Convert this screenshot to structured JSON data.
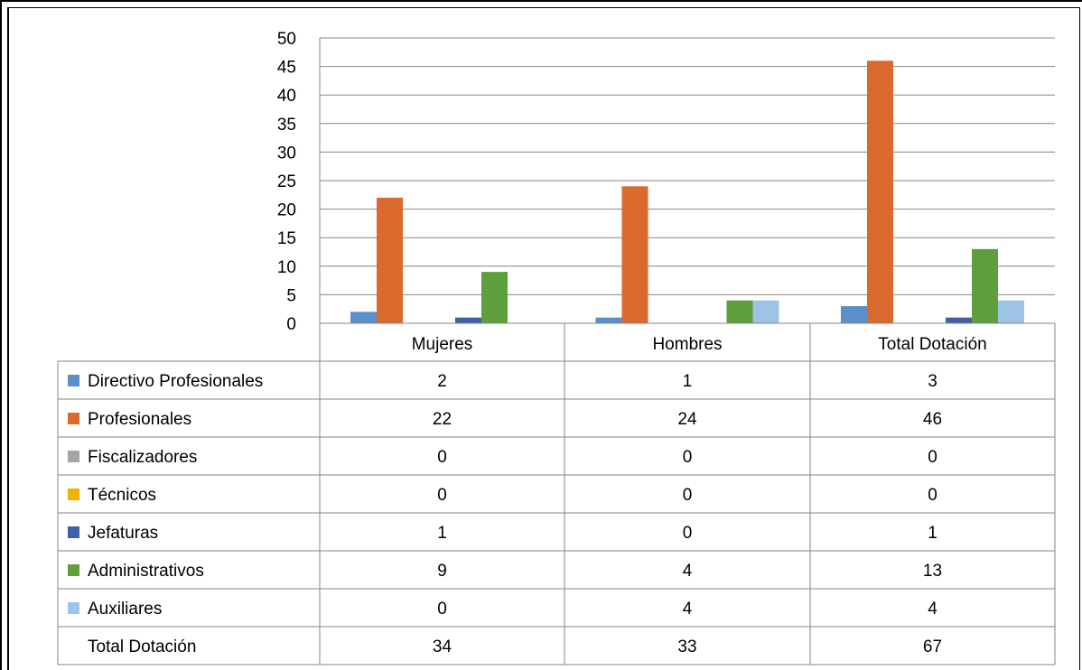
{
  "chart_data": {
    "type": "bar",
    "categories": [
      "Mujeres",
      "Hombres",
      "Total Dotación"
    ],
    "series": [
      {
        "name": "Directivo Profesionales",
        "values": [
          2,
          1,
          3
        ],
        "color": "#5B8FC9"
      },
      {
        "name": "Profesionales",
        "values": [
          22,
          24,
          46
        ],
        "color": "#D9692C"
      },
      {
        "name": "Fiscalizadores",
        "values": [
          0,
          0,
          0
        ],
        "color": "#A5A5A5"
      },
      {
        "name": "Técnicos",
        "values": [
          0,
          0,
          0
        ],
        "color": "#F0B400"
      },
      {
        "name": "Jefaturas",
        "values": [
          1,
          0,
          1
        ],
        "color": "#3F5FA8"
      },
      {
        "name": "Administrativos",
        "values": [
          9,
          4,
          13
        ],
        "color": "#5E9E3C"
      },
      {
        "name": "Auxiliares",
        "values": [
          0,
          4,
          4
        ],
        "color": "#9DC3E6"
      }
    ],
    "total_row": {
      "label": "Total Dotación",
      "values": [
        34,
        33,
        67
      ]
    },
    "yticks": [
      0,
      5,
      10,
      15,
      20,
      25,
      30,
      35,
      40,
      45,
      50
    ],
    "ylim": [
      0,
      50
    ],
    "grid": true,
    "legend": "data-table"
  }
}
